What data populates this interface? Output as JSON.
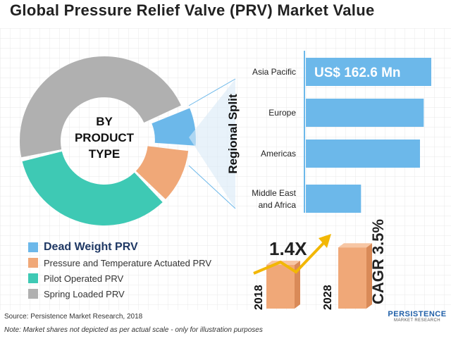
{
  "title": "Global Pressure Relief Valve (PRV) Market Value",
  "donut": {
    "center_line1": "BY",
    "center_line2": "PRODUCT",
    "center_line3": "TYPE"
  },
  "regional_label": "Regional Split",
  "legend": [
    {
      "label": "Dead Weight PRV",
      "color": "#6cb8ea",
      "highlight": true
    },
    {
      "label": "Pressure and Temperature Actuated PRV",
      "color": "#f0a878",
      "highlight": false
    },
    {
      "label": "Pilot Operated PRV",
      "color": "#3ec9b4",
      "highlight": false
    },
    {
      "label": "Spring Loaded PRV",
      "color": "#b0b0b0",
      "highlight": false
    }
  ],
  "growth": {
    "multiplier": "1.4X",
    "year_start": "2018",
    "year_end": "2028",
    "cagr": "CAGR 3.5%"
  },
  "source": "Source: Persistence Market Research, 2018",
  "note": "Note: Market shares not depicted as per actual scale - only for illustration purposes",
  "logo": {
    "line1": "PERSISTENCE",
    "line2": "MARKET RESEARCH"
  },
  "chart_data": [
    {
      "type": "pie",
      "title": "BY PRODUCT TYPE",
      "categories": [
        "Dead Weight PRV",
        "Pressure and Temperature Actuated PRV",
        "Pilot Operated PRV",
        "Spring Loaded PRV"
      ],
      "values": [
        8,
        11,
        34,
        47
      ],
      "colors": [
        "#6cb8ea",
        "#f0a878",
        "#3ec9b4",
        "#b0b0b0"
      ]
    },
    {
      "type": "bar",
      "orientation": "horizontal",
      "ylabel": "Regional Split",
      "categories": [
        "Asia Pacific",
        "Europe",
        "Americas",
        "Middle East and Africa"
      ],
      "values": [
        100,
        94,
        91,
        44
      ],
      "data_labels": [
        "US$ 162.6 Mn",
        "",
        "",
        ""
      ],
      "color": "#6cb8ea"
    },
    {
      "type": "bar",
      "categories": [
        "2018",
        "2028"
      ],
      "values": [
        1.0,
        1.4
      ],
      "annotations": [
        "1.4X",
        "CAGR 3.5%"
      ],
      "color": "#f0a878"
    }
  ]
}
